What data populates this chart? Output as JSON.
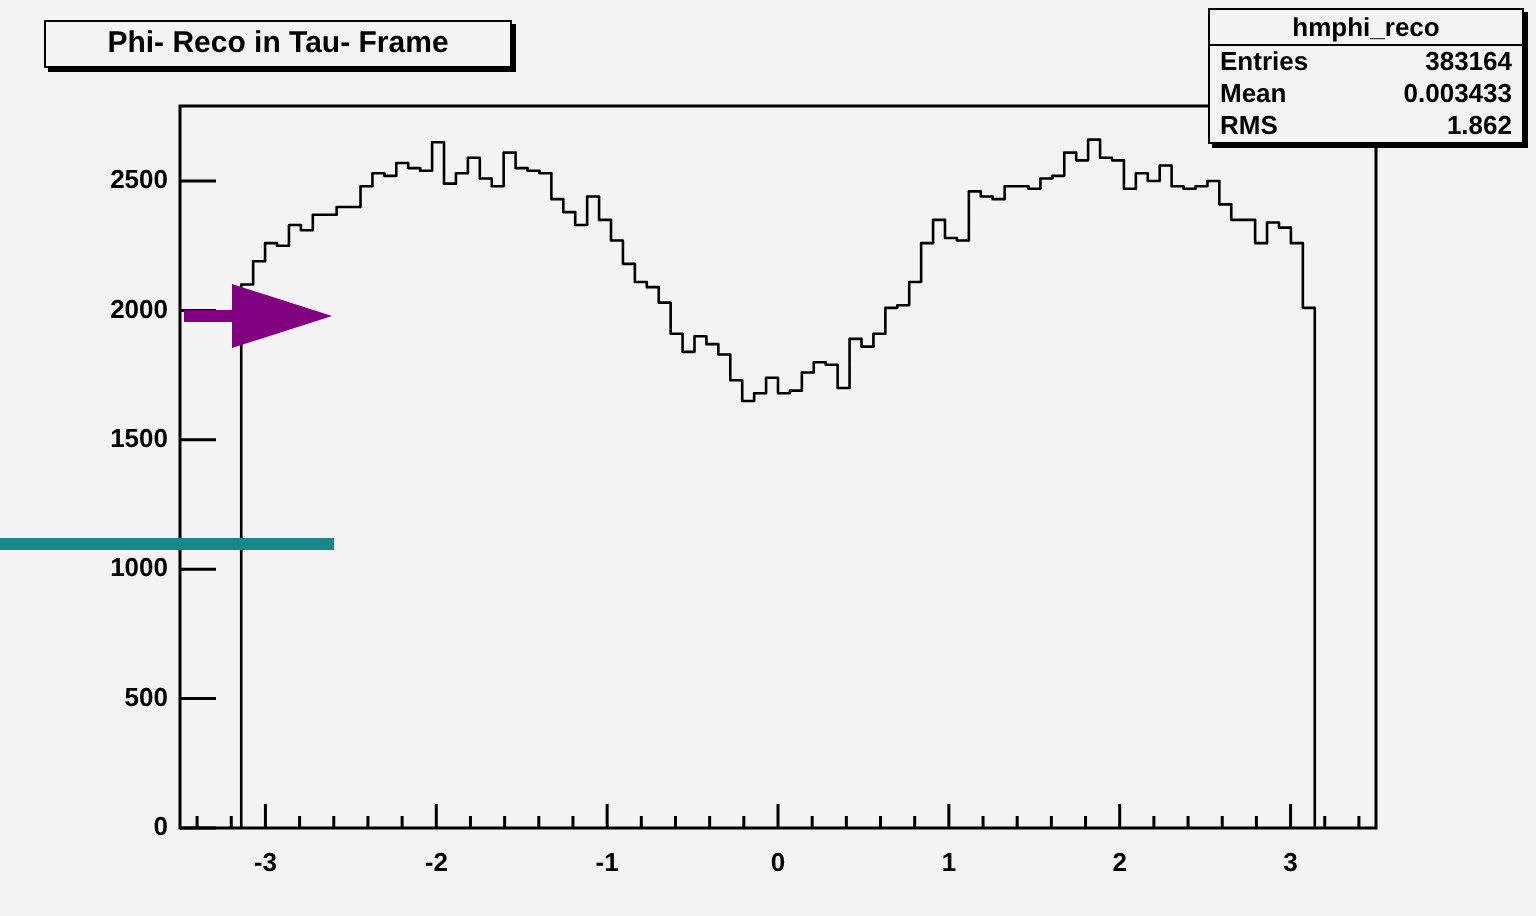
{
  "chart_data": {
    "type": "histogram",
    "title": "Phi- Reco in Tau- Frame",
    "color": "#000000",
    "bins": [
      -3.1416,
      -3.0718,
      -3.002,
      -2.9322,
      -2.8623,
      -2.7925,
      -2.7227,
      -2.6529,
      -2.5831,
      -2.5133,
      -2.4435,
      -2.3736,
      -2.3038,
      -2.234,
      -2.1642,
      -2.0944,
      -2.0246,
      -1.9548,
      -1.885,
      -1.8151,
      -1.7453,
      -1.6755,
      -1.6057,
      -1.5359,
      -1.4661,
      -1.3963,
      -1.3265,
      -1.2566,
      -1.1868,
      -1.117,
      -1.0472,
      -0.9774,
      -0.9076,
      -0.8378,
      -0.7679,
      -0.6981,
      -0.6283,
      -0.5585,
      -0.4887,
      -0.4189,
      -0.3491,
      -0.2793,
      -0.2094,
      -0.1396,
      -0.0698,
      0,
      0.0698,
      0.1396,
      0.2094,
      0.2793,
      0.3491,
      0.4189,
      0.4887,
      0.5585,
      0.6283,
      0.6981,
      0.7679,
      0.8378,
      0.9076,
      0.9774,
      1.0472,
      1.117,
      1.1868,
      1.2566,
      1.3265,
      1.3963,
      1.4661,
      1.5359,
      1.6057,
      1.6755,
      1.7453,
      1.8151,
      1.885,
      1.9548,
      2.0246,
      2.0944,
      2.1642,
      2.234,
      2.3038,
      2.3736,
      2.4435,
      2.5133,
      2.5831,
      2.6529,
      2.7227,
      2.7925,
      2.8623,
      2.9322,
      3.002,
      3.0718,
      3.1416
    ],
    "values": [
      2100,
      2190,
      2260,
      2250,
      2330,
      2310,
      2370,
      2370,
      2400,
      2400,
      2480,
      2530,
      2520,
      2570,
      2550,
      2540,
      2650,
      2490,
      2530,
      2590,
      2510,
      2480,
      2610,
      2550,
      2540,
      2530,
      2430,
      2380,
      2330,
      2440,
      2350,
      2270,
      2180,
      2110,
      2090,
      2030,
      1910,
      1840,
      1900,
      1870,
      1830,
      1730,
      1650,
      1680,
      1740,
      1680,
      1690,
      1760,
      1800,
      1790,
      1700,
      1890,
      1860,
      1910,
      2010,
      2020,
      2110,
      2260,
      2350,
      2280,
      2270,
      2460,
      2440,
      2430,
      2480,
      2480,
      2470,
      2510,
      2520,
      2610,
      2580,
      2660,
      2590,
      2580,
      2470,
      2530,
      2500,
      2560,
      2480,
      2470,
      2480,
      2500,
      2410,
      2350,
      2350,
      2260,
      2340,
      2320,
      2260,
      2010
    ],
    "xlim": [
      -3.5,
      3.5
    ],
    "ylim": [
      0,
      2790
    ],
    "xticks": [
      {
        "value": -3.4,
        "label": null
      },
      {
        "value": -3.2,
        "label": null
      },
      -3,
      {
        "value": -2.8,
        "label": null
      },
      {
        "value": -2.6,
        "label": null
      },
      {
        "value": -2.4,
        "label": null
      },
      {
        "value": -2.2,
        "label": null
      },
      -2,
      {
        "value": -1.8,
        "label": null
      },
      {
        "value": -1.6,
        "label": null
      },
      {
        "value": -1.4,
        "label": null
      },
      {
        "value": -1.2,
        "label": null
      },
      -1,
      {
        "value": -0.8,
        "label": null
      },
      {
        "value": -0.6,
        "label": null
      },
      {
        "value": -0.4,
        "label": null
      },
      {
        "value": -0.2,
        "label": null
      },
      0,
      {
        "value": 0.2,
        "label": null
      },
      {
        "value": 0.4,
        "label": null
      },
      {
        "value": 0.6,
        "label": null
      },
      {
        "value": 0.8,
        "label": null
      },
      1,
      {
        "value": 1.2,
        "label": null
      },
      {
        "value": 1.4,
        "label": null
      },
      {
        "value": 1.6,
        "label": null
      },
      {
        "value": 1.8,
        "label": null
      },
      2,
      {
        "value": 2.2,
        "label": null
      },
      {
        "value": 2.4,
        "label": null
      },
      {
        "value": 2.6,
        "label": null
      },
      {
        "value": 2.8,
        "label": null
      },
      3,
      {
        "value": 3.2,
        "label": null
      },
      {
        "value": 3.4,
        "label": null
      }
    ],
    "yticks": [
      0,
      500,
      1000,
      1500,
      2000,
      2500
    ],
    "annotations": [
      "hmphi_reco",
      "Entries 383164",
      "Mean 0.003433",
      "RMS 1.862"
    ]
  }
}
